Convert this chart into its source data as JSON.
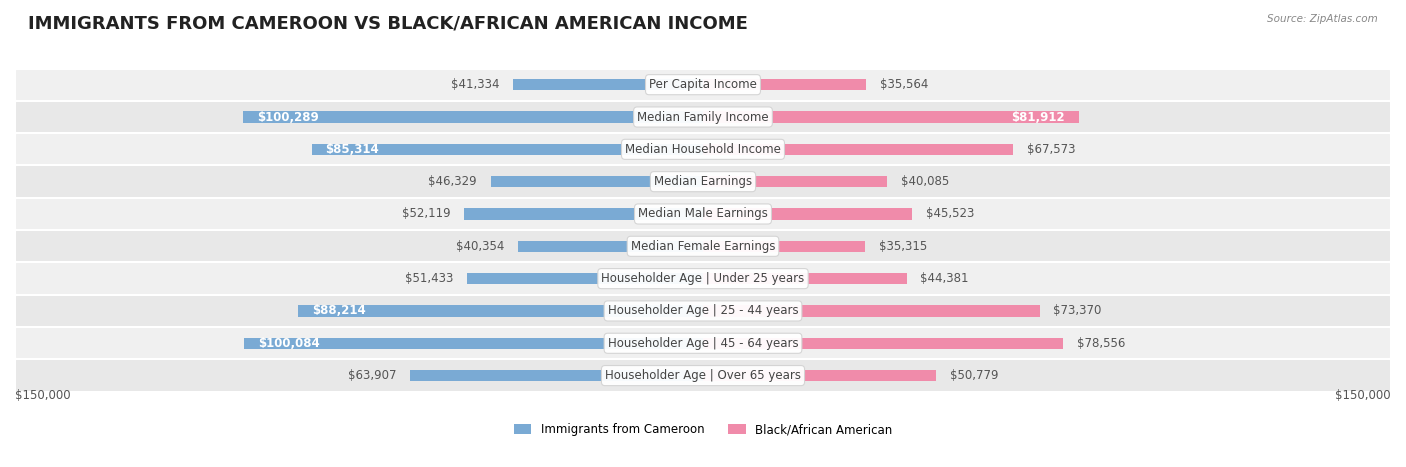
{
  "title": "IMMIGRANTS FROM CAMEROON VS BLACK/AFRICAN AMERICAN INCOME",
  "source": "Source: ZipAtlas.com",
  "categories": [
    "Per Capita Income",
    "Median Family Income",
    "Median Household Income",
    "Median Earnings",
    "Median Male Earnings",
    "Median Female Earnings",
    "Householder Age | Under 25 years",
    "Householder Age | 25 - 44 years",
    "Householder Age | 45 - 64 years",
    "Householder Age | Over 65 years"
  ],
  "cameroon_values": [
    41334,
    100289,
    85314,
    46329,
    52119,
    40354,
    51433,
    88214,
    100084,
    63907
  ],
  "black_values": [
    35564,
    81912,
    67573,
    40085,
    45523,
    35315,
    44381,
    73370,
    78556,
    50779
  ],
  "cameroon_labels": [
    "$41,334",
    "$100,289",
    "$85,314",
    "$46,329",
    "$52,119",
    "$40,354",
    "$51,433",
    "$88,214",
    "$100,084",
    "$63,907"
  ],
  "black_labels": [
    "$35,564",
    "$81,912",
    "$67,573",
    "$40,085",
    "$45,523",
    "$35,315",
    "$44,381",
    "$73,370",
    "$78,556",
    "$50,779"
  ],
  "cameroon_color": "#7aaad4",
  "black_color": "#f08baa",
  "max_value": 150000,
  "axis_label": "$150,000",
  "legend_cameroon": "Immigrants from Cameroon",
  "legend_black": "Black/African American",
  "title_fontsize": 13,
  "label_fontsize": 8.5,
  "category_fontsize": 8.5,
  "row_colors": [
    "#f0f0f0",
    "#e8e8e8"
  ]
}
